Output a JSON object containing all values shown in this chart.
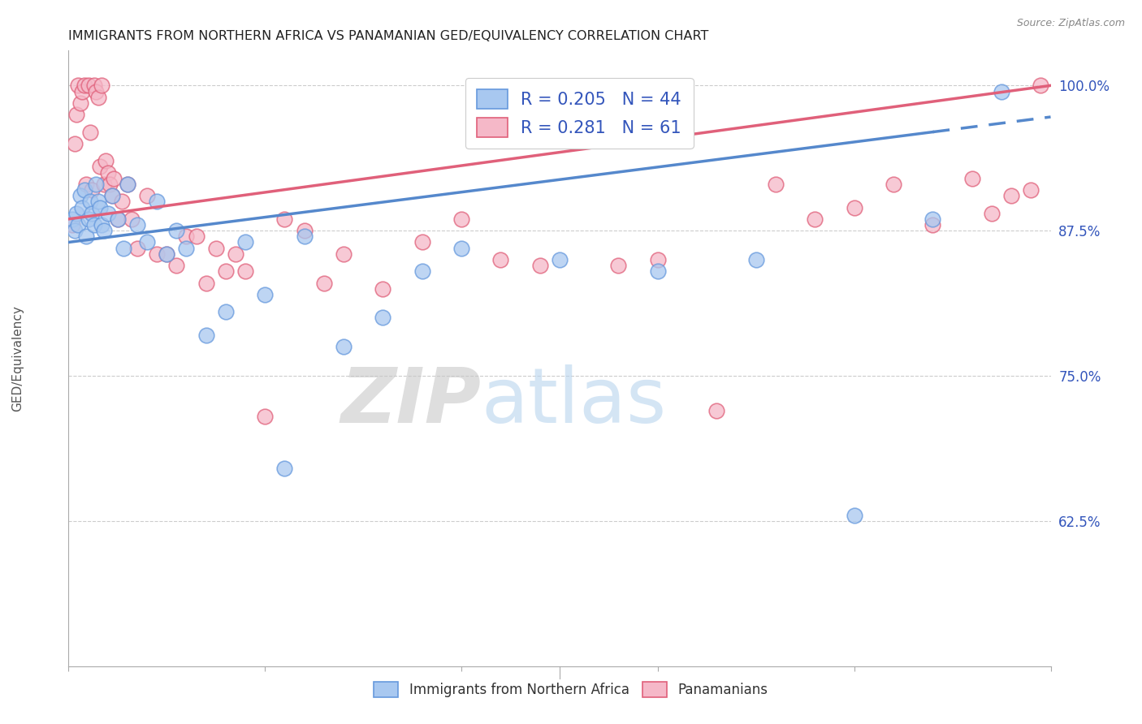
{
  "title": "IMMIGRANTS FROM NORTHERN AFRICA VS PANAMANIAN GED/EQUIVALENCY CORRELATION CHART",
  "source": "Source: ZipAtlas.com",
  "ylabel": "GED/Equivalency",
  "yticks": [
    62.5,
    75.0,
    87.5,
    100.0
  ],
  "ytick_labels": [
    "62.5%",
    "75.0%",
    "87.5%",
    "100.0%"
  ],
  "xmin": 0.0,
  "xmax": 50.0,
  "ymin": 50.0,
  "ymax": 103.0,
  "blue_R": 0.205,
  "blue_N": 44,
  "pink_R": 0.281,
  "pink_N": 61,
  "blue_color": "#a8c8f0",
  "pink_color": "#f5b8c8",
  "blue_edge_color": "#6699dd",
  "pink_edge_color": "#e0607a",
  "blue_line_color": "#5588cc",
  "pink_line_color": "#e0607a",
  "legend_R_color": "#3355bb",
  "watermark_zip": "ZIP",
  "watermark_atlas": "atlas",
  "blue_scatter_x": [
    0.2,
    0.3,
    0.4,
    0.5,
    0.6,
    0.7,
    0.8,
    0.9,
    1.0,
    1.1,
    1.2,
    1.3,
    1.4,
    1.5,
    1.6,
    1.7,
    1.8,
    2.0,
    2.2,
    2.5,
    2.8,
    3.0,
    3.5,
    4.0,
    4.5,
    5.0,
    5.5,
    6.0,
    7.0,
    8.0,
    9.0,
    10.0,
    11.0,
    12.0,
    14.0,
    16.0,
    18.0,
    20.0,
    25.0,
    30.0,
    35.0,
    40.0,
    44.0,
    47.5
  ],
  "blue_scatter_y": [
    88.5,
    87.5,
    89.0,
    88.0,
    90.5,
    89.5,
    91.0,
    87.0,
    88.5,
    90.0,
    89.0,
    88.0,
    91.5,
    90.0,
    89.5,
    88.0,
    87.5,
    89.0,
    90.5,
    88.5,
    86.0,
    91.5,
    88.0,
    86.5,
    90.0,
    85.5,
    87.5,
    86.0,
    78.5,
    80.5,
    86.5,
    82.0,
    67.0,
    87.0,
    77.5,
    80.0,
    84.0,
    86.0,
    85.0,
    84.0,
    85.0,
    63.0,
    88.5,
    99.5
  ],
  "pink_scatter_x": [
    0.2,
    0.3,
    0.4,
    0.5,
    0.6,
    0.7,
    0.8,
    0.9,
    1.0,
    1.1,
    1.2,
    1.3,
    1.4,
    1.5,
    1.6,
    1.7,
    1.8,
    1.9,
    2.0,
    2.1,
    2.2,
    2.3,
    2.5,
    2.7,
    3.0,
    3.2,
    3.5,
    4.0,
    4.5,
    5.0,
    5.5,
    6.0,
    6.5,
    7.0,
    7.5,
    8.0,
    8.5,
    9.0,
    10.0,
    11.0,
    12.0,
    13.0,
    14.0,
    16.0,
    18.0,
    20.0,
    22.0,
    24.0,
    28.0,
    30.0,
    33.0,
    36.0,
    38.0,
    40.0,
    42.0,
    44.0,
    46.0,
    47.0,
    48.0,
    49.0,
    49.5
  ],
  "pink_scatter_y": [
    88.0,
    95.0,
    97.5,
    100.0,
    98.5,
    99.5,
    100.0,
    91.5,
    100.0,
    96.0,
    91.0,
    100.0,
    99.5,
    99.0,
    93.0,
    100.0,
    91.5,
    93.5,
    92.5,
    91.5,
    90.5,
    92.0,
    88.5,
    90.0,
    91.5,
    88.5,
    86.0,
    90.5,
    85.5,
    85.5,
    84.5,
    87.0,
    87.0,
    83.0,
    86.0,
    84.0,
    85.5,
    84.0,
    71.5,
    88.5,
    87.5,
    83.0,
    85.5,
    82.5,
    86.5,
    88.5,
    85.0,
    84.5,
    84.5,
    85.0,
    72.0,
    91.5,
    88.5,
    89.5,
    91.5,
    88.0,
    92.0,
    89.0,
    90.5,
    91.0,
    100.0
  ]
}
